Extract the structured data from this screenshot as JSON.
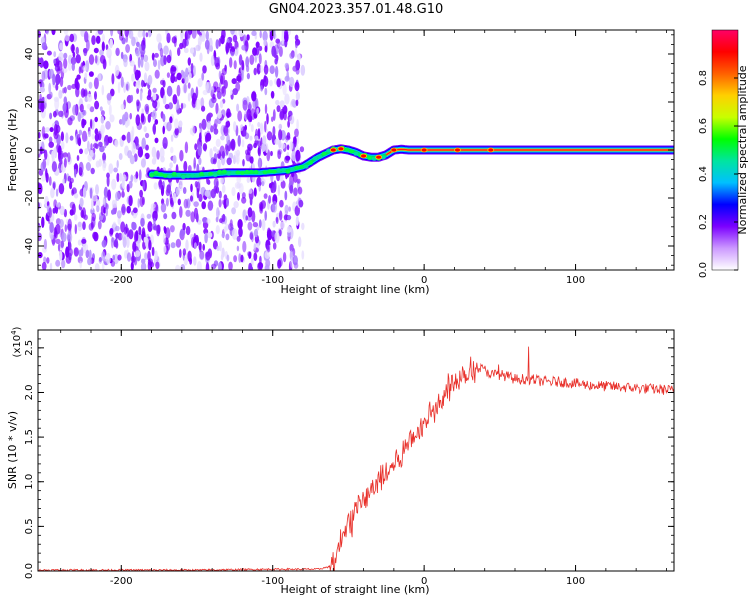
{
  "title": "GN04.2023.357.01.48.G10",
  "chart_data": [
    {
      "type": "heatmap",
      "name": "spectrogram",
      "xlabel": "Height of straight line (km)",
      "ylabel": "Frequency (Hz)",
      "xlim": [
        -255,
        165
      ],
      "ylim": [
        -50,
        50
      ],
      "x_ticks": [
        -200,
        -100,
        0,
        100
      ],
      "y_ticks": [
        -40,
        -20,
        0,
        20,
        40
      ],
      "noise_region_x": [
        -255,
        -80
      ],
      "ridge": {
        "x": [
          -180,
          -170,
          -160,
          -150,
          -140,
          -130,
          -120,
          -110,
          -100,
          -90,
          -80,
          -75,
          -70,
          -65,
          -60,
          -55,
          -50,
          -45,
          -40,
          -35,
          -30,
          -25,
          -20,
          -15,
          -10,
          0,
          20,
          40,
          60,
          100,
          165
        ],
        "y": [
          -10,
          -10.5,
          -10.5,
          -10.5,
          -10,
          -9.5,
          -9.5,
          -9.5,
          -9,
          -8.5,
          -7,
          -5,
          -3,
          -1.5,
          0,
          0.5,
          0,
          -1,
          -2.5,
          -3,
          -3,
          -2,
          0,
          0.3,
          0,
          0,
          0,
          0,
          0,
          0,
          0
        ]
      },
      "colorbar": {
        "label": "Normalized spectral amplitude",
        "ticks": [
          "0.0",
          "0.2",
          "0.4",
          "0.6",
          "0.8"
        ],
        "range": [
          0,
          1
        ],
        "colors": [
          "#ffffff",
          "#cc99ff",
          "#7b00ff",
          "#0000ff",
          "#00c0ff",
          "#00e5a0",
          "#00ff00",
          "#c8ff00",
          "#ffd000",
          "#ff6000",
          "#ff0000",
          "#ff0066"
        ]
      }
    },
    {
      "type": "line",
      "name": "snr",
      "xlabel": "Height of straight line (km)",
      "ylabel": "SNR (10 * v/v)",
      "y_scale_label": "(x10",
      "y_scale_exp": "4",
      "y_scale_close": ")",
      "xlim": [
        -255,
        165
      ],
      "ylim": [
        0,
        2.7
      ],
      "x_ticks": [
        -200,
        -100,
        0,
        100
      ],
      "y_ticks": [
        "0.0",
        "0.5",
        "1.0",
        "1.5",
        "2.0",
        "2.5"
      ],
      "color": "#e8302a",
      "x": [
        -255,
        -200,
        -150,
        -100,
        -70,
        -62,
        -58,
        -55,
        -50,
        -45,
        -40,
        -35,
        -30,
        -25,
        -20,
        -15,
        -10,
        -5,
        0,
        5,
        10,
        15,
        20,
        25,
        30,
        35,
        40,
        45,
        50,
        55,
        60,
        70,
        80,
        90,
        100,
        110,
        120,
        130,
        140,
        150,
        160,
        165
      ],
      "y": [
        0.01,
        0.01,
        0.01,
        0.02,
        0.02,
        0.05,
        0.15,
        0.35,
        0.55,
        0.7,
        0.8,
        0.9,
        1.0,
        1.1,
        1.2,
        1.3,
        1.45,
        1.55,
        1.65,
        1.8,
        1.9,
        2.05,
        2.15,
        2.2,
        2.25,
        2.28,
        2.25,
        2.2,
        2.2,
        2.18,
        2.15,
        2.15,
        2.12,
        2.12,
        2.1,
        2.08,
        2.07,
        2.06,
        2.05,
        2.04,
        2.03,
        2.02
      ]
    }
  ]
}
